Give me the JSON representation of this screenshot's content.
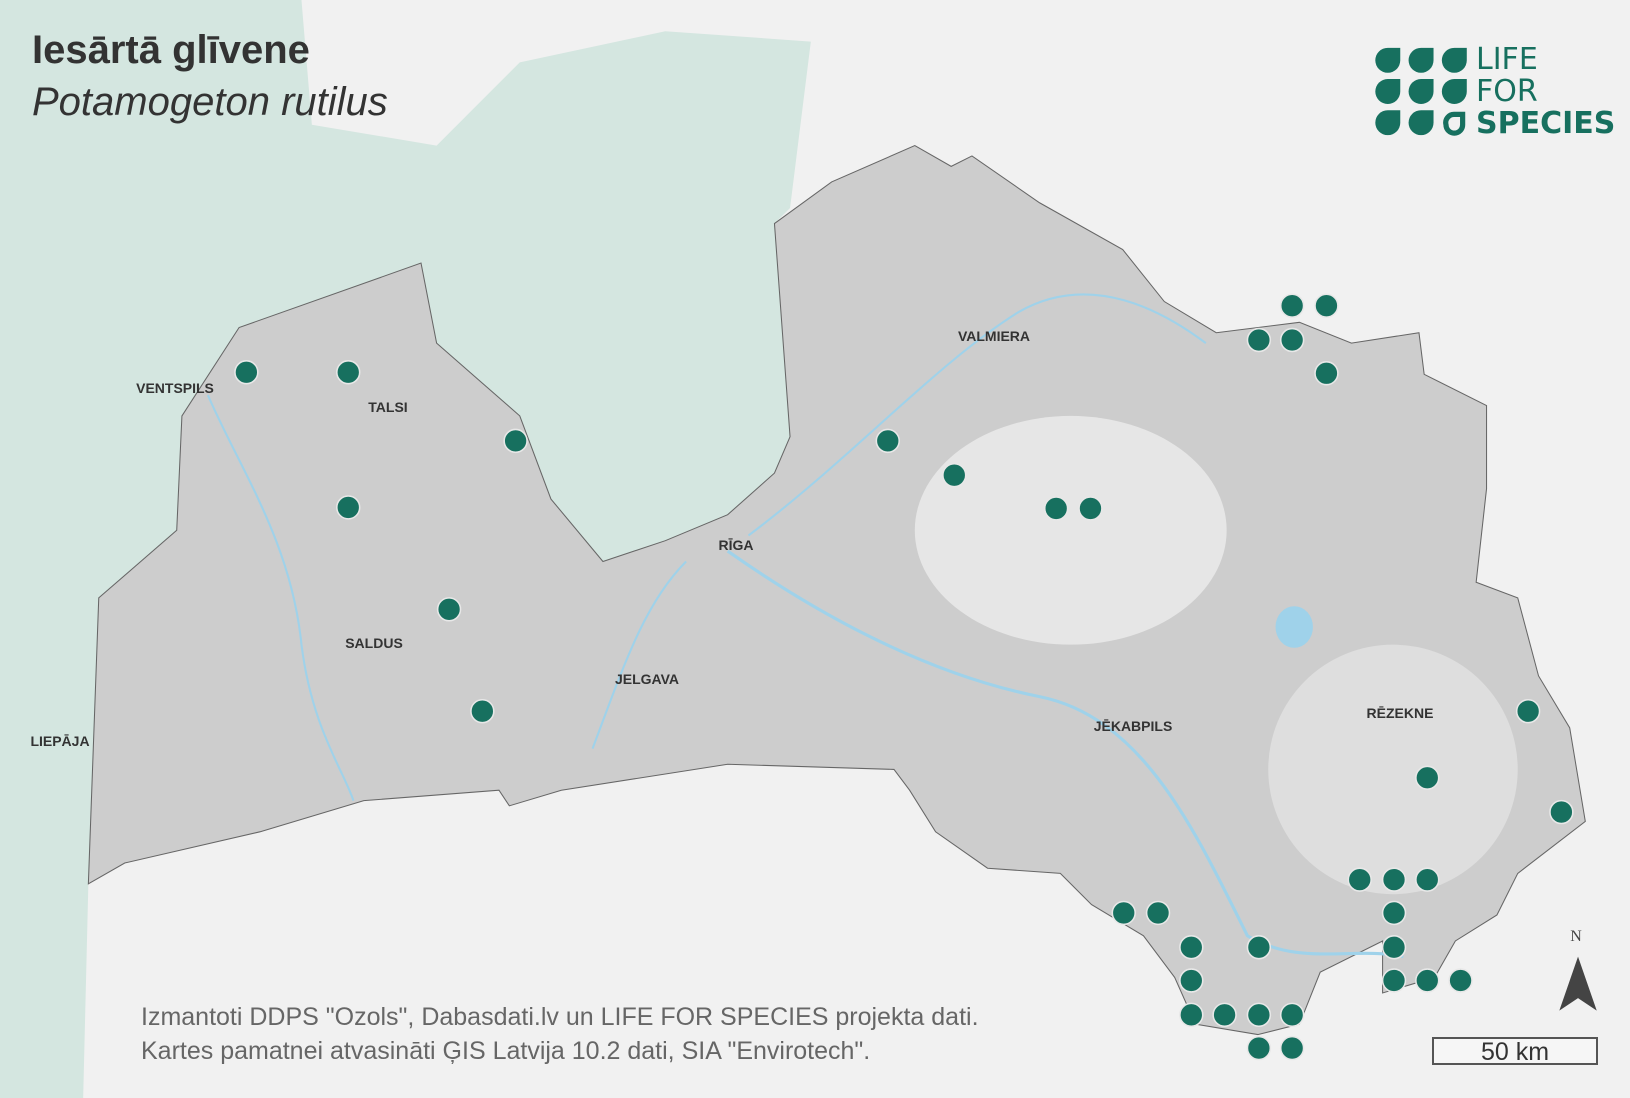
{
  "title": "Iesārtā glīvene",
  "subtitle": "Potamogeton rutilus",
  "logo": {
    "lines": [
      "LIFE",
      "FOR",
      "SPECIES"
    ],
    "color": "#17705f"
  },
  "cities": {
    "ventspils": "VENTSPILS",
    "talsi": "TALSI",
    "liepaja": "LIEPĀJA",
    "saldus": "SALDUS",
    "jelgava": "JELGAVA",
    "riga": "RĪGA",
    "valmiera": "VALMIERA",
    "jekabpils": "JĒKABPILS",
    "rezekne": "RĒZEKNE"
  },
  "credits": {
    "line1": "Izmantoti DDPS \"Ozols\", Dabasdati.lv un LIFE FOR SPECIES projekta dati.",
    "line2": "Kartes pamatnei atvasināti ĢIS Latvija 10.2 dati, SIA \"Envirotech\"."
  },
  "north_arrow": {
    "label": "N"
  },
  "scale_bar": {
    "label": "50 km"
  },
  "colors": {
    "sea": "#d4e6e0",
    "land_outside": "#f1f1f1",
    "country": "#cdcdcd",
    "water": "#9fd2ea",
    "occurrence": "#17705f"
  }
}
